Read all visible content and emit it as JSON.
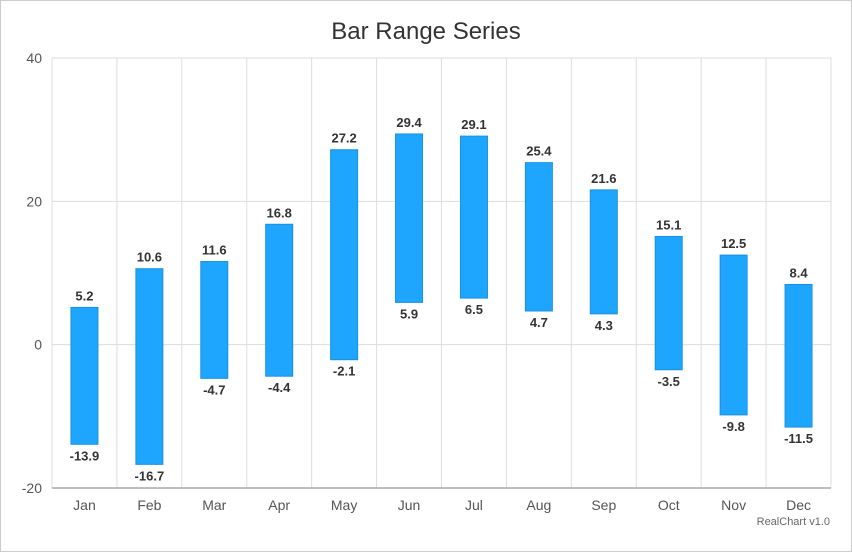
{
  "chart_data": {
    "type": "bar",
    "title": "Bar Range Series",
    "categories": [
      "Jan",
      "Feb",
      "Mar",
      "Apr",
      "May",
      "Jun",
      "Jul",
      "Aug",
      "Sep",
      "Oct",
      "Nov",
      "Dec"
    ],
    "low": [
      -13.9,
      -16.7,
      -4.7,
      -4.4,
      -2.1,
      5.9,
      6.5,
      4.7,
      4.3,
      -3.5,
      -9.8,
      -11.5
    ],
    "high": [
      5.2,
      10.6,
      11.6,
      16.8,
      27.2,
      29.4,
      29.1,
      25.4,
      21.6,
      15.1,
      12.5,
      8.4
    ],
    "ylim": [
      -20,
      40
    ],
    "yticks": [
      -20,
      0,
      20,
      40
    ],
    "grid": true,
    "bar_color": "#1ea6ff"
  },
  "credit": "RealChart v1.0"
}
